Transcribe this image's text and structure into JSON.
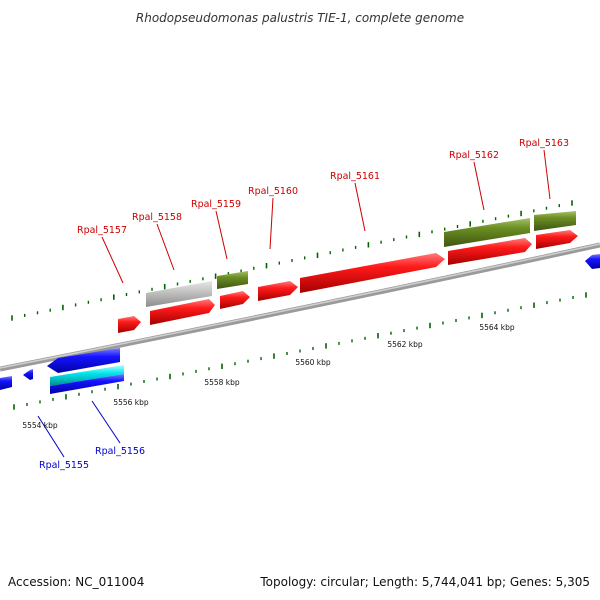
{
  "title": "Rhodopseudomonas palustris TIE-1, complete genome",
  "footer": {
    "accession": "Accession: NC_011004",
    "topology": "Topology: circular; Length: 5,744,041 bp; Genes: 5,305"
  },
  "colors": {
    "forward_gene": "#ff0000",
    "reverse_gene": "#0000ff",
    "olive_feature": "#6b8e23",
    "gray_feature": "#bfbfbf",
    "cyan_feature": "#00e5ee",
    "tick": "#006400",
    "backbone": "#888888",
    "forward_label": "#cc0000",
    "reverse_label": "#0000cc"
  },
  "kbp_labels": [
    "5554 kbp",
    "5556 kbp",
    "5558 kbp",
    "5560 kbp",
    "5562 kbp",
    "5564 kbp"
  ],
  "genes": [
    {
      "name": "Rpal_5155",
      "strand": "-"
    },
    {
      "name": "Rpal_5156",
      "strand": "-"
    },
    {
      "name": "Rpal_5157",
      "strand": "+"
    },
    {
      "name": "Rpal_5158",
      "strand": "+"
    },
    {
      "name": "Rpal_5159",
      "strand": "+"
    },
    {
      "name": "Rpal_5160",
      "strand": "+"
    },
    {
      "name": "Rpal_5161",
      "strand": "+"
    },
    {
      "name": "Rpal_5162",
      "strand": "+"
    },
    {
      "name": "Rpal_5163",
      "strand": "+"
    }
  ]
}
